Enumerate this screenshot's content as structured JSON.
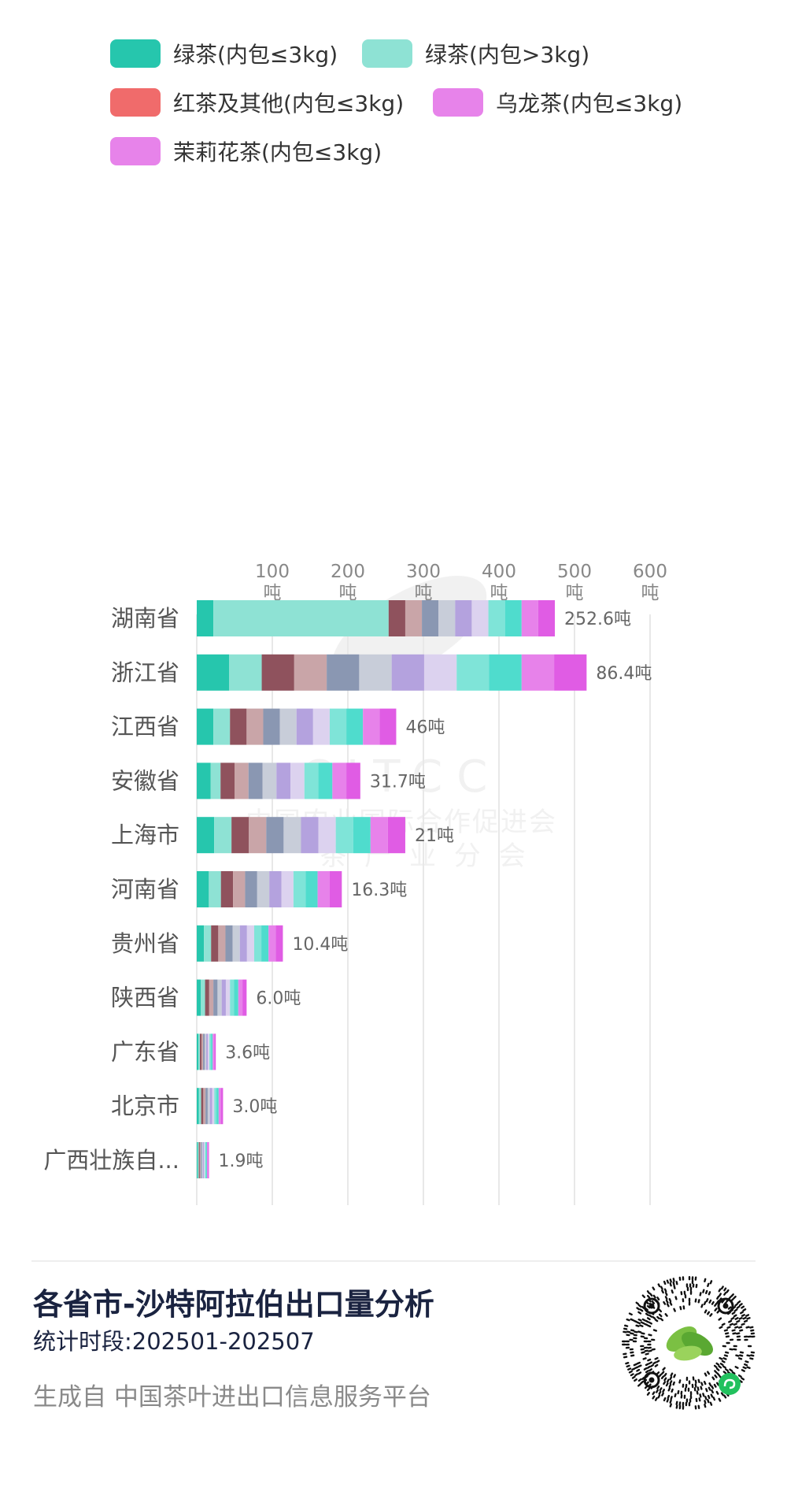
{
  "colors": {
    "palette": [
      "#26c6ad",
      "#8ee2d4",
      "#8f525d",
      "#c9a5a8",
      "#8a97b2",
      "#c8cdd9",
      "#b4a2de",
      "#dcd2ef",
      "#7fe4d8",
      "#4fdccd",
      "#e782ea",
      "#e05ce4"
    ],
    "legend": [
      "#26c6ad",
      "#8ee2d4",
      "#f06b6b",
      "#e783ea",
      "#e783ea"
    ],
    "grid": "#e8e8e8",
    "axis_text": "#888888",
    "category_text": "#555555",
    "value_text": "#666666"
  },
  "chart_data": {
    "type": "bar",
    "orientation": "horizontal",
    "stacked": true,
    "legend": [
      "绿茶(内包≤3kg)",
      "绿茶(内包>3kg)",
      "红茶及其他(内包≤3kg)",
      "乌龙茶(内包≤3kg)",
      "茉莉花茶(内包≤3kg)"
    ],
    "legend_position": "top",
    "xticks": [
      "100\n吨",
      "200\n吨",
      "300\n吨",
      "400\n吨",
      "500\n吨",
      "600\n吨"
    ],
    "xlim": [
      0,
      600
    ],
    "grid": true,
    "categories": [
      "湖南省",
      "浙江省",
      "江西省",
      "安徽省",
      "上海市",
      "河南省",
      "贵州省",
      "陕西省",
      "广东省",
      "北京市",
      "广西壮族自..."
    ],
    "totals": [
      "252.6吨",
      "86.4吨",
      "46吨",
      "31.7吨",
      "21吨",
      "16.3吨",
      "10.4吨",
      "6.0吨",
      "3.6吨",
      "3.0吨",
      "1.9吨"
    ],
    "segments": [
      [
        22,
        232,
        22,
        22,
        22,
        22,
        22,
        22,
        22,
        22,
        22,
        22
      ],
      [
        43,
        43,
        43,
        43,
        43,
        43,
        43,
        43,
        43,
        43,
        43,
        43
      ],
      [
        22,
        22,
        22,
        22,
        22,
        22,
        22,
        22,
        22,
        22,
        22,
        22
      ],
      [
        18.5,
        13,
        18.5,
        18.5,
        18.5,
        18.5,
        18.5,
        18.5,
        18.5,
        18.5,
        18.5,
        18.5
      ],
      [
        23,
        23,
        23,
        23,
        23,
        23,
        23,
        23,
        23,
        23,
        23,
        23
      ],
      [
        16,
        16,
        16,
        16,
        16,
        16,
        16,
        16,
        16,
        16,
        16,
        16
      ],
      [
        9.5,
        9.5,
        9.5,
        9.5,
        9.5,
        9.5,
        9.5,
        9.5,
        9.5,
        9.5,
        9.5,
        9.5
      ],
      [
        5.5,
        5.5,
        5.5,
        5.5,
        5.5,
        5.5,
        5.5,
        5.5,
        5.5,
        5.5,
        5.5,
        5.5
      ],
      [
        2.1,
        2.1,
        2.1,
        2.1,
        2.1,
        2.1,
        2.1,
        2.1,
        2.1,
        2.1,
        2.1,
        2.1
      ],
      [
        2.9,
        2.9,
        2.9,
        2.9,
        2.9,
        2.9,
        2.9,
        2.9,
        2.9,
        2.9,
        2.9,
        2.9
      ],
      [
        1.35,
        1.35,
        1.35,
        1.35,
        1.35,
        1.35,
        1.35,
        1.35,
        1.35,
        1.35,
        1.35,
        1.35
      ]
    ]
  },
  "footer": {
    "title": "各省市-沙特阿拉伯出口量分析",
    "period": "统计时段:202501-202507",
    "source": "生成自 中国茶叶进出口信息服务平台"
  },
  "watermark": {
    "letters": "CITCC",
    "line1": "中国农业国际合作促进会",
    "line2": "茶  产  业  分  会"
  }
}
